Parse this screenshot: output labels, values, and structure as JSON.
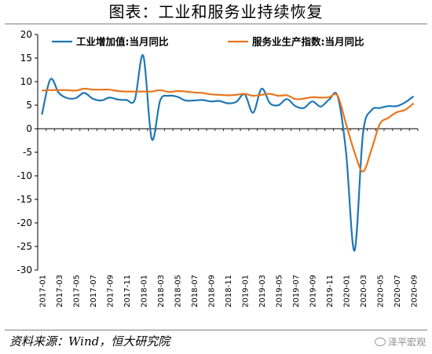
{
  "title": "图表：工业和服务业持续恢复",
  "source": "资料来源：Wind，恒大研究院",
  "watermark": "泽平宏观",
  "colors": {
    "industrial": "#1f77b4",
    "services": "#e8761e",
    "axis": "#000000"
  },
  "chart_data": {
    "type": "line",
    "title": "",
    "xlabel": "",
    "ylabel": "",
    "ylim": [
      -30,
      20
    ],
    "yticks": [
      -30,
      -25,
      -20,
      -15,
      -10,
      -5,
      0,
      5,
      10,
      15,
      20
    ],
    "grid": false,
    "legend_position": "top",
    "x": [
      "2017-01",
      "2017-02",
      "2017-03",
      "2017-04",
      "2017-05",
      "2017-06",
      "2017-07",
      "2017-08",
      "2017-09",
      "2017-10",
      "2017-11",
      "2017-12",
      "2018-01",
      "2018-02",
      "2018-03",
      "2018-04",
      "2018-05",
      "2018-06",
      "2018-07",
      "2018-08",
      "2018-09",
      "2018-10",
      "2018-11",
      "2018-12",
      "2019-01",
      "2019-02",
      "2019-03",
      "2019-04",
      "2019-05",
      "2019-06",
      "2019-07",
      "2019-08",
      "2019-09",
      "2019-10",
      "2019-11",
      "2019-12",
      "2020-01",
      "2020-02",
      "2020-03",
      "2020-04",
      "2020-05",
      "2020-06",
      "2020-07",
      "2020-08",
      "2020-09"
    ],
    "xtick_labels": [
      "2017-01",
      "2017-03",
      "2017-05",
      "2017-07",
      "2017-09",
      "2017-11",
      "2018-01",
      "2018-03",
      "2018-05",
      "2018-07",
      "2018-09",
      "2018-11",
      "2019-01",
      "2019-03",
      "2019-05",
      "2019-07",
      "2019-09",
      "2019-11",
      "2020-01",
      "2020-03",
      "2020-05",
      "2020-07",
      "2020-09"
    ],
    "series": [
      {
        "name": "工业增加值:当月同比",
        "values": [
          3.0,
          10.5,
          7.6,
          6.5,
          6.5,
          7.6,
          6.4,
          6.0,
          6.6,
          6.2,
          6.1,
          6.2,
          15.5,
          -2.2,
          6.0,
          7.0,
          6.8,
          6.0,
          6.0,
          6.1,
          5.8,
          5.9,
          5.4,
          5.7,
          7.3,
          3.4,
          8.5,
          5.4,
          5.0,
          6.3,
          4.8,
          4.4,
          5.8,
          4.7,
          6.2,
          6.9,
          -5.0,
          -25.9,
          -1.1,
          3.9,
          4.4,
          4.8,
          4.8,
          5.6,
          6.9
        ]
      },
      {
        "name": "服务业生产指数:当月同比",
        "values": [
          8.1,
          8.2,
          8.2,
          8.2,
          8.1,
          8.5,
          8.3,
          8.3,
          8.3,
          8.0,
          7.9,
          7.9,
          7.9,
          7.9,
          8.2,
          7.8,
          8.0,
          7.9,
          7.7,
          7.6,
          7.3,
          7.2,
          7.1,
          7.2,
          7.4,
          7.0,
          7.2,
          7.4,
          7.0,
          7.1,
          6.3,
          6.4,
          6.7,
          6.6,
          6.7,
          7.0,
          1.0,
          -5.0,
          -9.1,
          -4.5,
          1.0,
          2.3,
          3.5,
          4.0,
          5.4
        ]
      }
    ]
  }
}
